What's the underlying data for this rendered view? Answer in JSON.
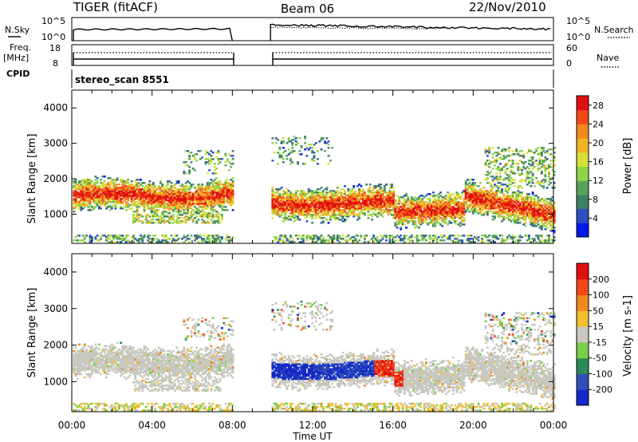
{
  "header": {
    "radar": "TIGER (fitACF)",
    "beam": "Beam 06",
    "date": "22/Nov/2010"
  },
  "top_panels": {
    "nsky_label": "N.Sky",
    "nsearch_label": "N.Search",
    "noise_ticks": [
      "10^5",
      "10^0"
    ],
    "freq_label": "Freq.",
    "freq_unit": "[MHz]",
    "freq_ticks": [
      "18",
      "8"
    ],
    "nave_label": "Nave",
    "nave_ticks": [
      "60",
      "0"
    ],
    "cpid_label": "CPID",
    "cpid_value": "stereo_scan 8551"
  },
  "chart_data": [
    {
      "type": "heatmap",
      "title": "",
      "ylabel": "Slant Range [km]",
      "xlabel": "Time UT",
      "x_ticks": [
        "00:00",
        "04:00",
        "08:00",
        "12:00",
        "16:00",
        "20:00",
        "00:00"
      ],
      "xlim_hours": [
        0,
        24
      ],
      "y_ticks": [
        1000,
        2000,
        3000,
        4000
      ],
      "ylim": [
        180,
        4500
      ],
      "data_gap_hours": [
        8.0,
        9.9
      ],
      "colorbar": {
        "label": "Power [dB]",
        "ticks": [
          "4",
          "8",
          "12",
          "16",
          "20",
          "24",
          "28"
        ],
        "range": [
          0,
          30
        ],
        "colors": [
          "#0018e8",
          "#2c4fc0",
          "#3f7f63",
          "#58a35a",
          "#8dd648",
          "#d8e038",
          "#f0b428",
          "#f08a20",
          "#f04a18",
          "#e01010"
        ]
      }
    },
    {
      "type": "heatmap",
      "title": "",
      "ylabel": "Slant Range [km]",
      "xlabel": "Time UT",
      "x_ticks": [
        "00:00",
        "04:00",
        "08:00",
        "12:00",
        "16:00",
        "20:00",
        "00:00"
      ],
      "xlim_hours": [
        0,
        24
      ],
      "y_ticks": [
        1000,
        2000,
        3000,
        4000
      ],
      "ylim": [
        180,
        4500
      ],
      "data_gap_hours": [
        8.0,
        9.9
      ],
      "colorbar": {
        "label": "Velocity [m s-1]",
        "ticks": [
          "200",
          "100",
          "50",
          "15",
          "-15",
          "-50",
          "-100",
          "-200"
        ],
        "range": [
          -250,
          250
        ],
        "colors": [
          "#1428c8",
          "#3050b8",
          "#2c8a58",
          "#7ad04a",
          "#c8c8c0",
          "#f0c030",
          "#f08820",
          "#f04818",
          "#e01010"
        ]
      }
    }
  ],
  "time_axis_label": "Time UT"
}
